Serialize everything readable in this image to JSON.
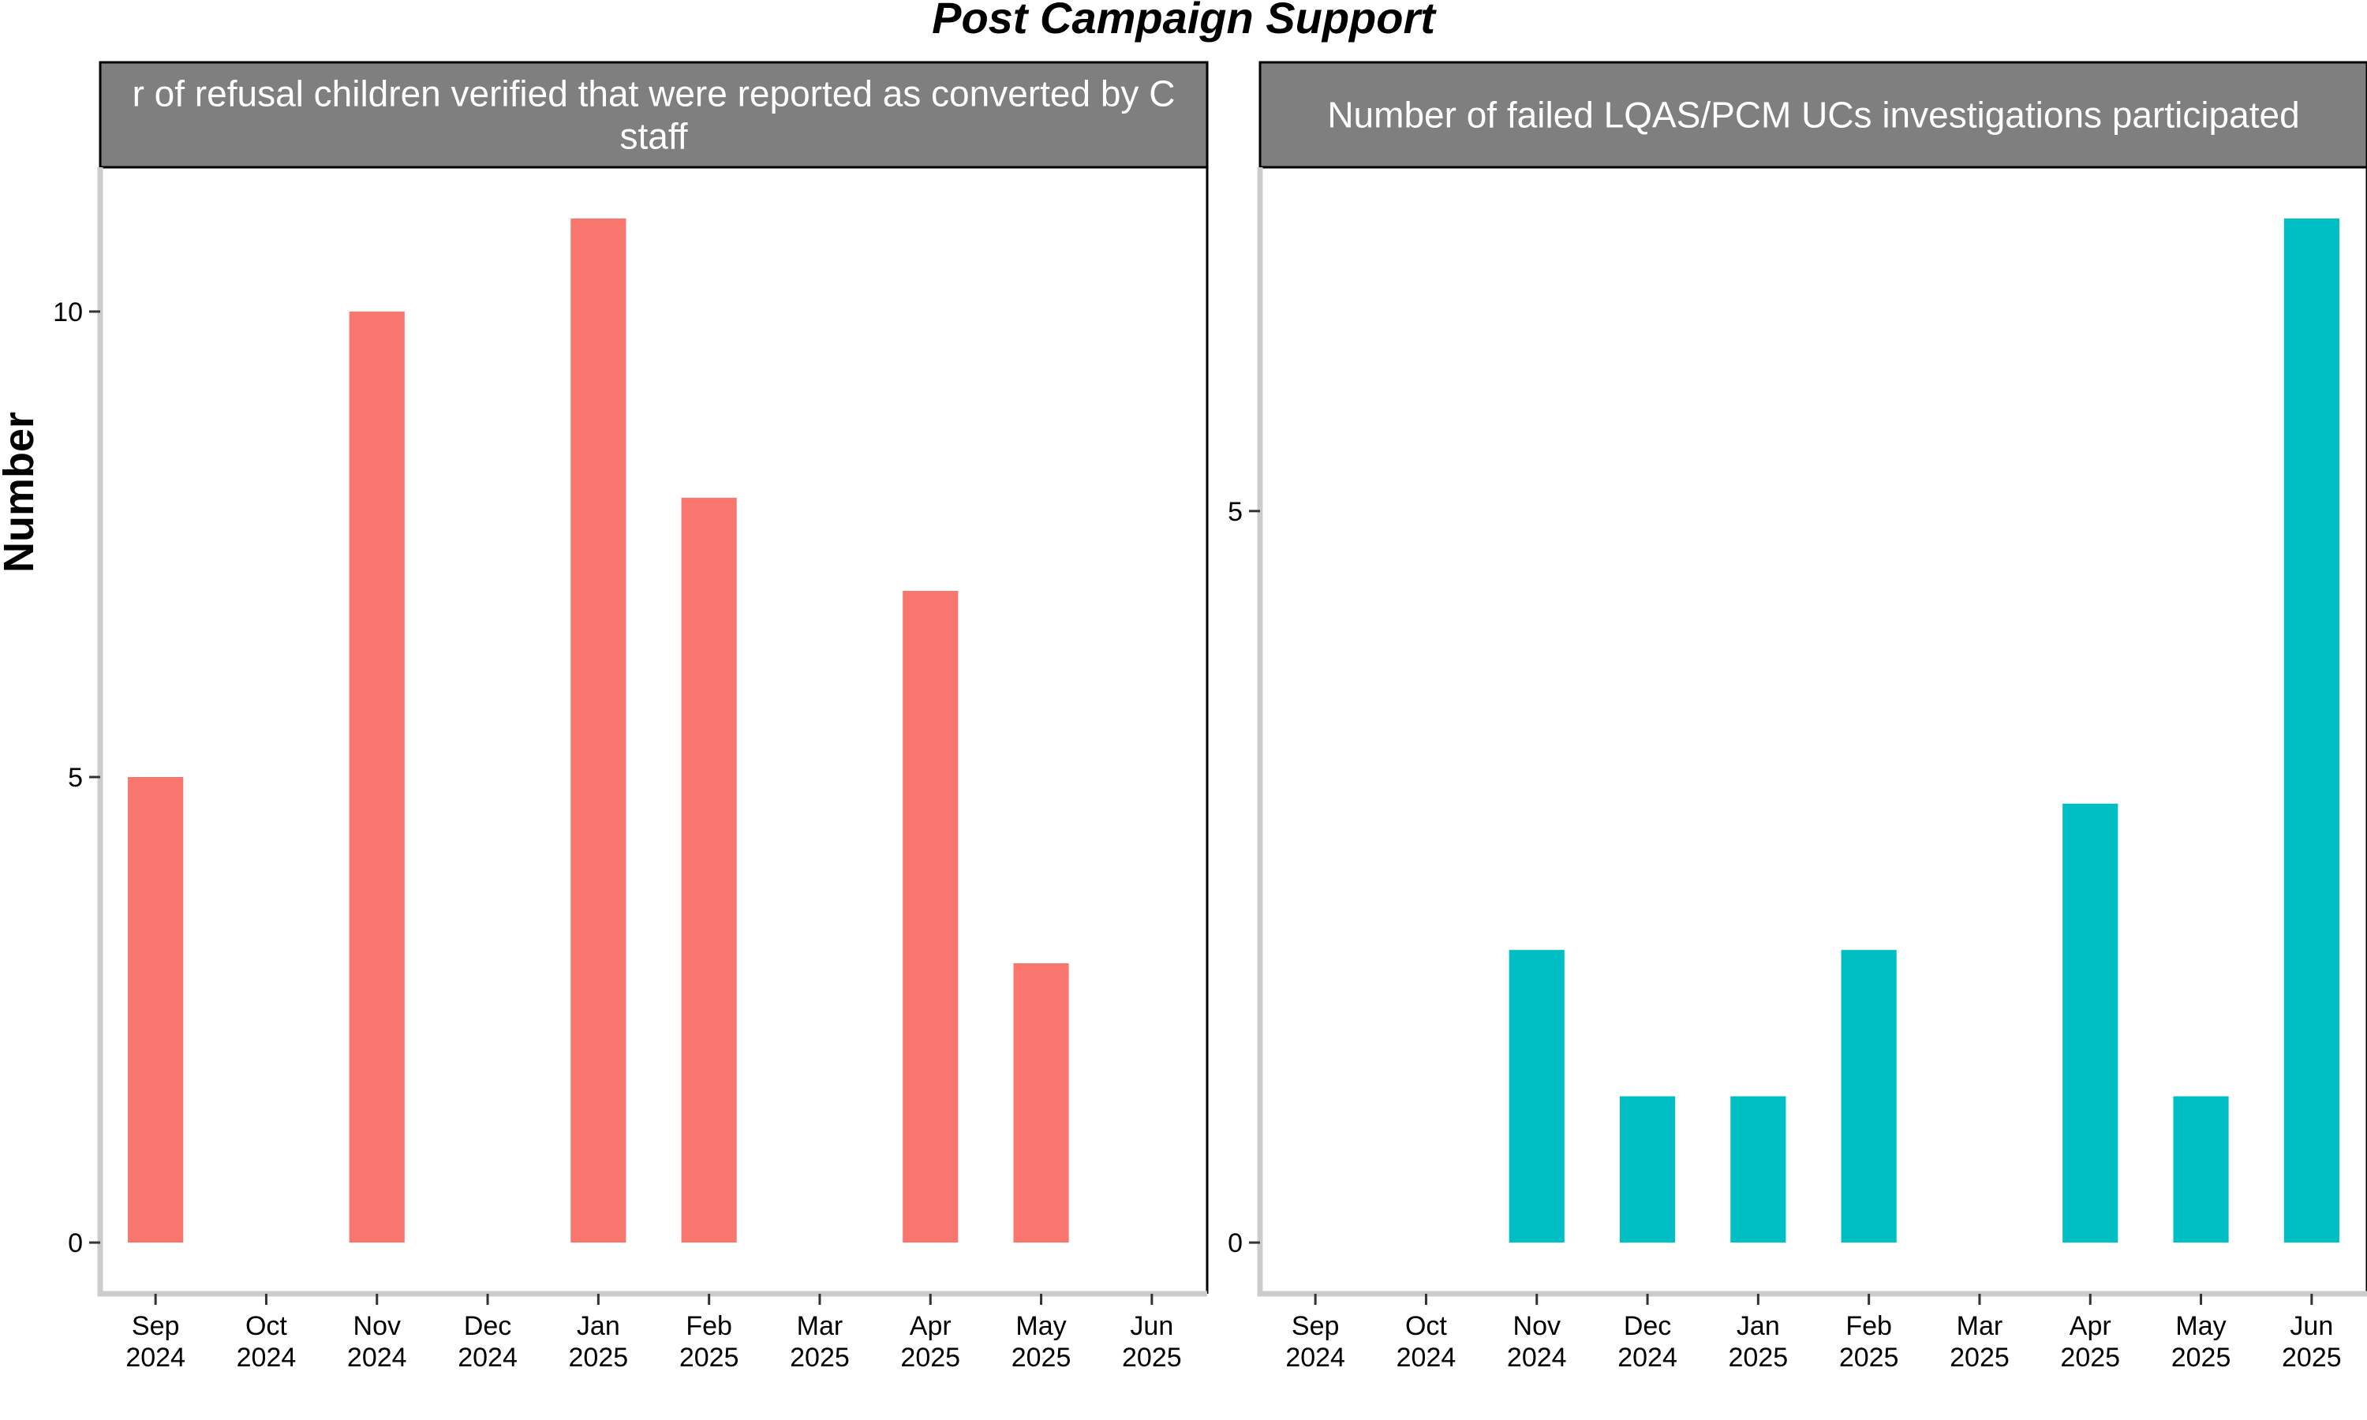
{
  "title": "Post Campaign Support",
  "ylabel": "Number",
  "colors": {
    "panel_1": "#F8766D",
    "panel_2": "#00BFC4",
    "strip": "#7F7F7F"
  },
  "chart_data": [
    {
      "type": "bar",
      "strip_title": "Number of refusal children verified that were reported as converted by CDP staff",
      "strip_lines": [
        "r of refusal children verified that were reported as converted by C",
        "staff"
      ],
      "categories": [
        [
          "Sep",
          "2024"
        ],
        [
          "Oct",
          "2024"
        ],
        [
          "Nov",
          "2024"
        ],
        [
          "Dec",
          "2024"
        ],
        [
          "Jan",
          "2025"
        ],
        [
          "Feb",
          "2025"
        ],
        [
          "Mar",
          "2025"
        ],
        [
          "Apr",
          "2025"
        ],
        [
          "May",
          "2025"
        ],
        [
          "Jun",
          "2025"
        ]
      ],
      "values": [
        5,
        0,
        10,
        0,
        11,
        8,
        0,
        7,
        3,
        0
      ],
      "ylim": [
        -0.55,
        11.55
      ],
      "yticks": [
        0,
        5,
        10
      ],
      "grid": false,
      "legend": "none"
    },
    {
      "type": "bar",
      "strip_title": "Number of failed LQAS/PCM UCs investigations participated",
      "strip_lines": [
        "Number of failed LQAS/PCM UCs investigations participated"
      ],
      "categories": [
        [
          "Sep",
          "2024"
        ],
        [
          "Oct",
          "2024"
        ],
        [
          "Nov",
          "2024"
        ],
        [
          "Dec",
          "2024"
        ],
        [
          "Jan",
          "2025"
        ],
        [
          "Feb",
          "2025"
        ],
        [
          "Mar",
          "2025"
        ],
        [
          "Apr",
          "2025"
        ],
        [
          "May",
          "2025"
        ],
        [
          "Jun",
          "2025"
        ]
      ],
      "values": [
        0,
        0,
        2,
        1,
        1,
        2,
        0,
        3,
        1,
        7
      ],
      "ylim": [
        -0.35,
        7.35
      ],
      "yticks": [
        0,
        5
      ],
      "grid": false,
      "legend": "none"
    }
  ]
}
